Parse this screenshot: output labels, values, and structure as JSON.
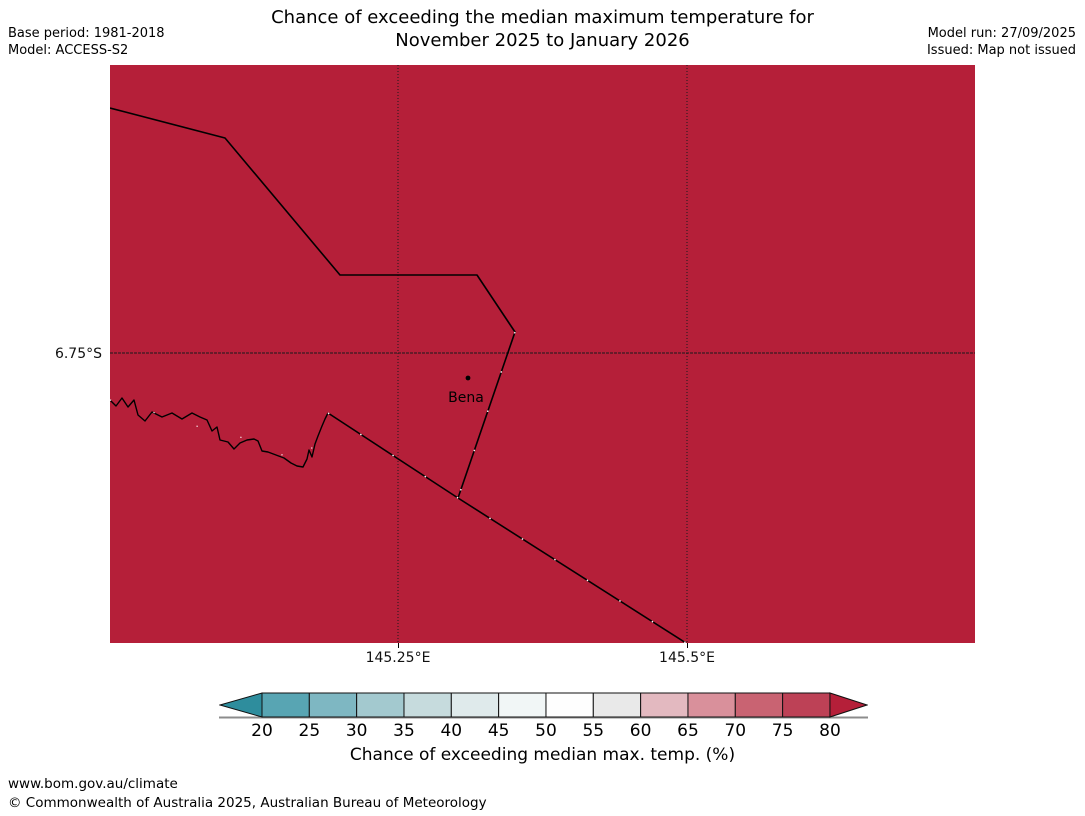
{
  "header": {
    "base_period": "Base period: 1981-2018",
    "model": "Model: ACCESS-S2",
    "title_line1": "Chance of exceeding the median maximum temperature for",
    "title_line2": "November 2025 to January 2026",
    "model_run": "Model run: 27/09/2025",
    "issued": "Issued: Map not issued"
  },
  "map": {
    "fill_color": "#B51F39",
    "gridline_color": "#1a1a1a",
    "border_color": "#000000",
    "lat_label": "6.75°S",
    "lon_label_1": "145.25°E",
    "lon_label_2": "145.5°E",
    "town": {
      "name": "Bena"
    }
  },
  "colorbar": {
    "caption": "Chance of exceeding median max. temp. (%)",
    "tick_labels": [
      "20",
      "25",
      "30",
      "35",
      "40",
      "45",
      "50",
      "55",
      "60",
      "65",
      "70",
      "75",
      "80"
    ],
    "left_arrow_color": "#2E8D9D",
    "right_arrow_color": "#B51F39",
    "segment_colors": [
      "#58A5B3",
      "#7EB7C2",
      "#A3C9CF",
      "#C6DBDD",
      "#DFEAEB",
      "#F1F6F6",
      "#FEFEFE",
      "#E9E9E9",
      "#E3B9C0",
      "#D9909B",
      "#C96372",
      "#BD4156"
    ],
    "outline_color": "#111111",
    "underline_color": "#8C8C8C"
  },
  "footer": {
    "url": "www.bom.gov.au/climate",
    "copyright": "© Commonwealth of Australia 2025, Australian Bureau of Meteorology"
  }
}
